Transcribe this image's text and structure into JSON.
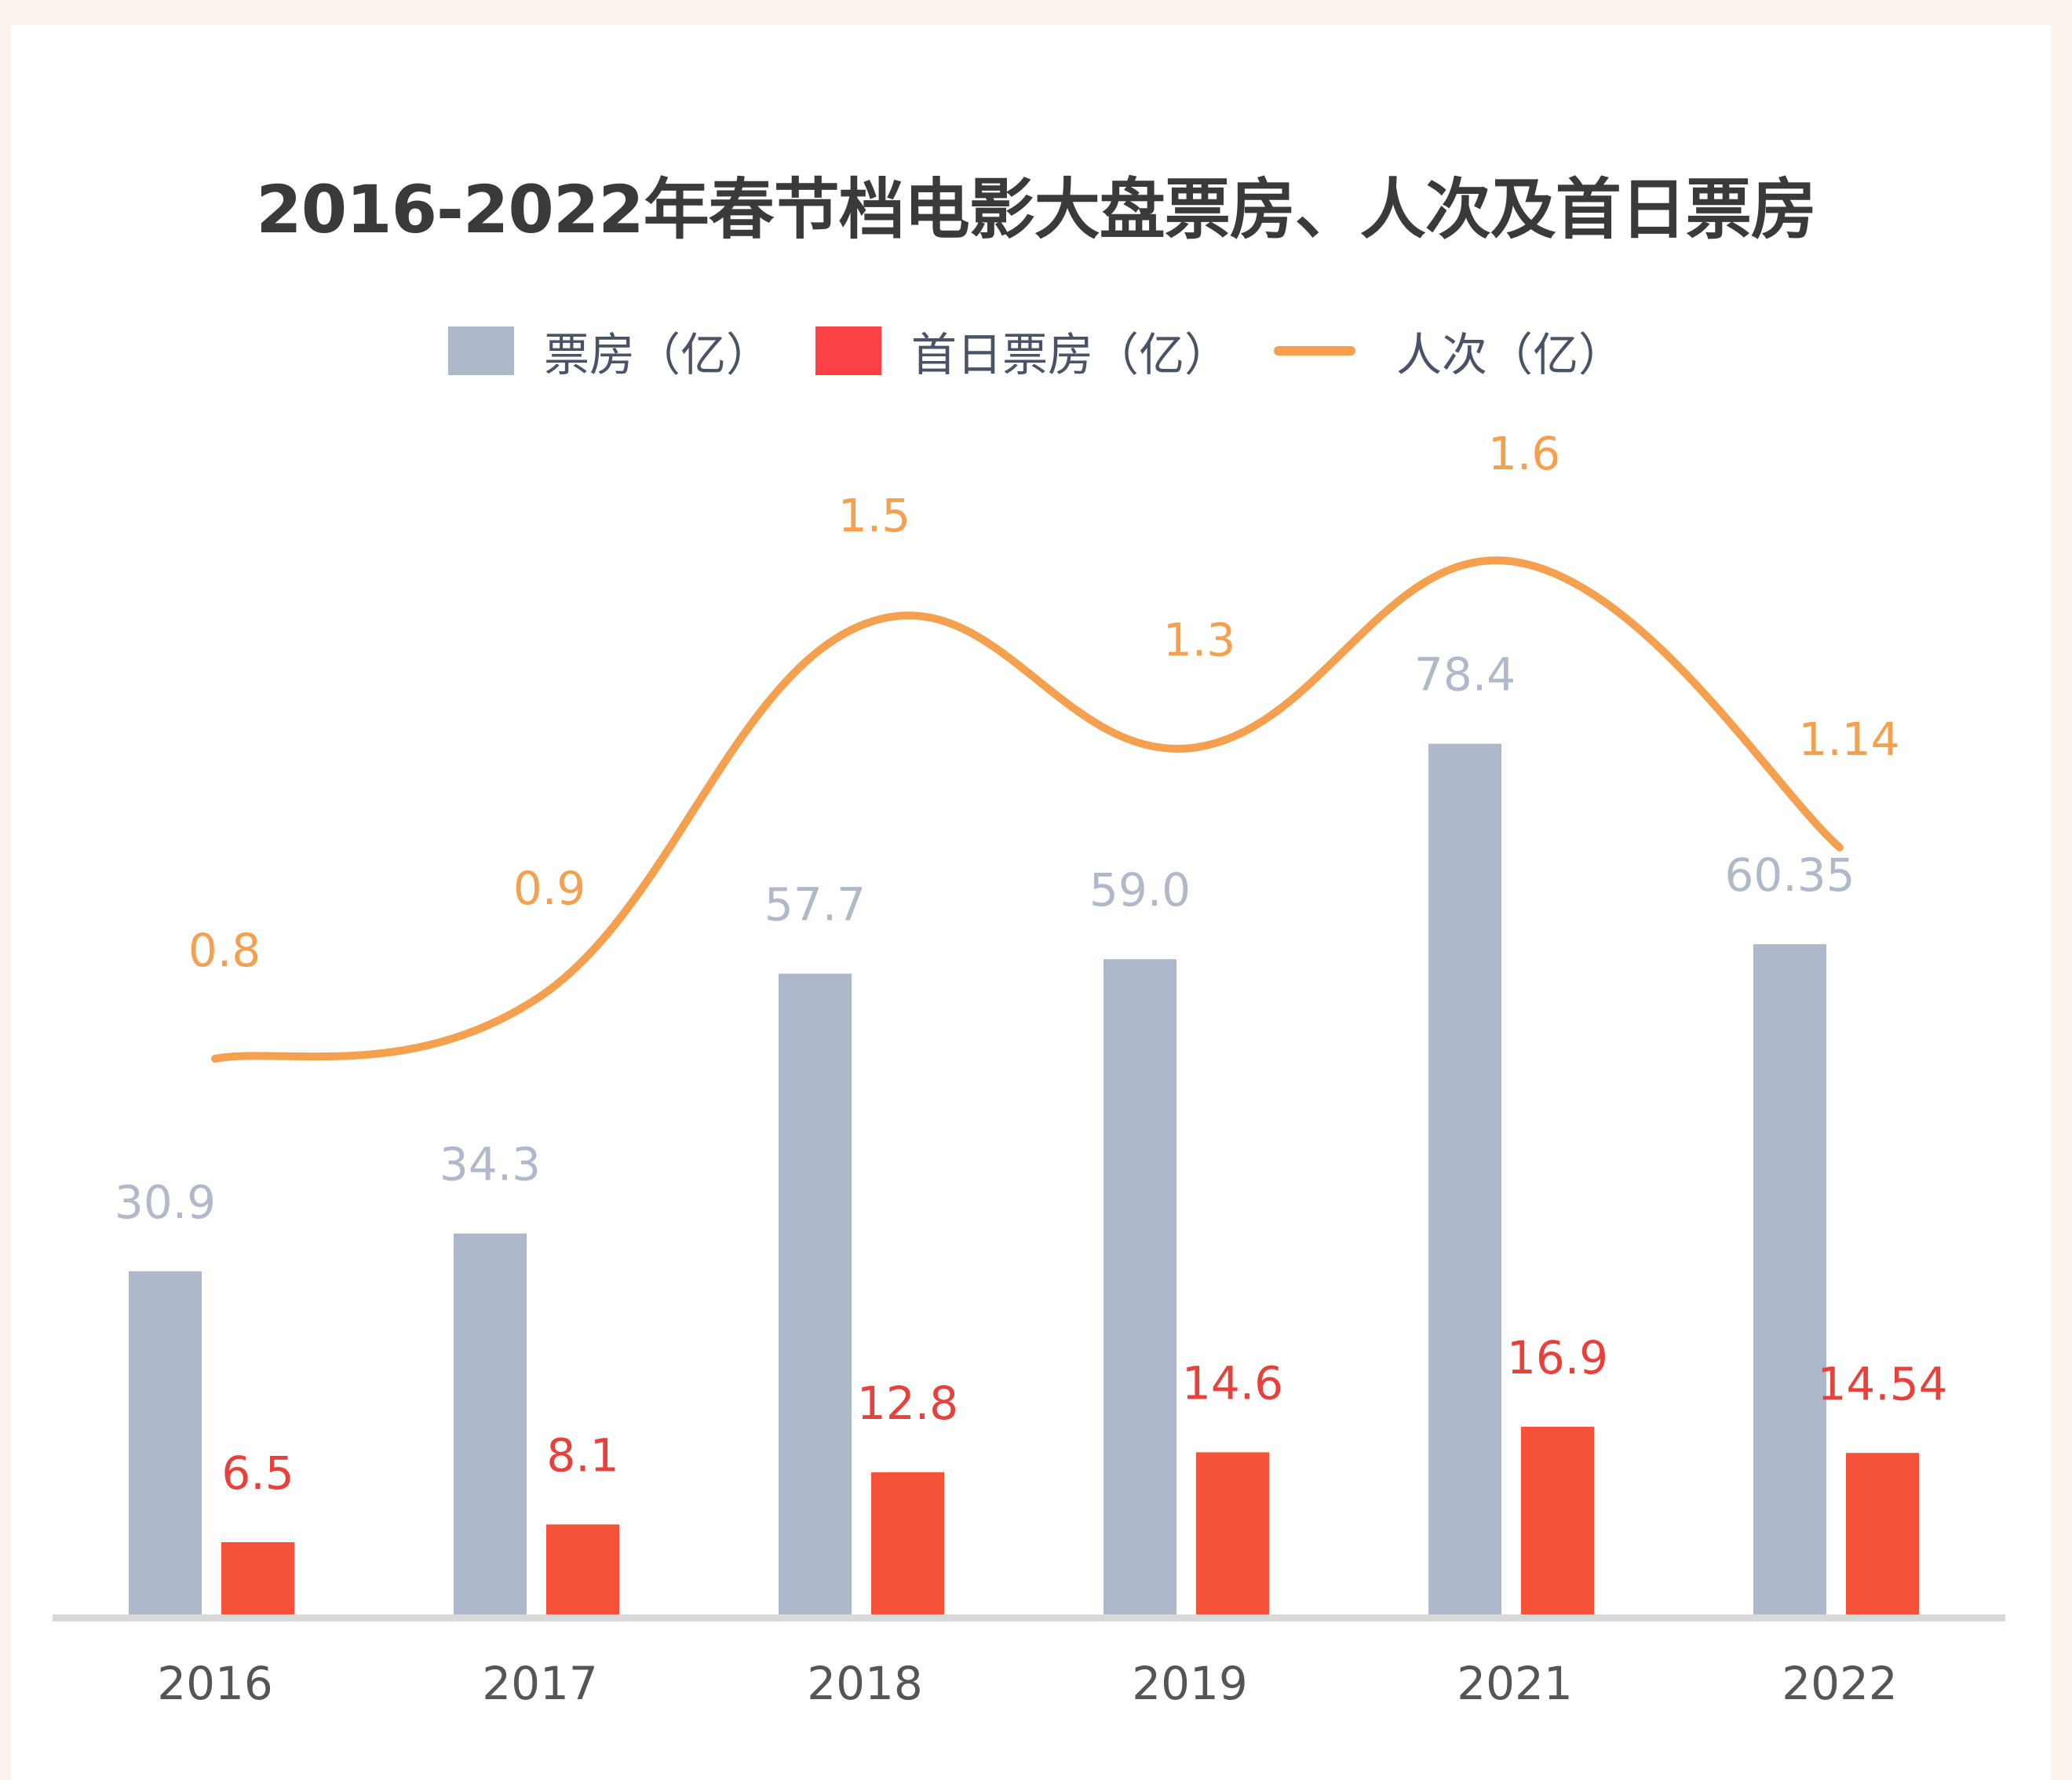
{
  "chart_data": {
    "type": "bar",
    "title": "2016-2022年春节档电影大盘票房、人次及首日票房",
    "categories": [
      "2016",
      "2017",
      "2018",
      "2019",
      "2021",
      "2022"
    ],
    "series": [
      {
        "name": "票房（亿）",
        "type": "bar",
        "color": "#adb8ca",
        "labels": [
          "30.9",
          "34.3",
          "57.7",
          "59.0",
          "78.4",
          "60.35"
        ],
        "values": [
          30.9,
          34.3,
          57.7,
          59.0,
          78.4,
          60.35
        ]
      },
      {
        "name": "首日票房（亿）",
        "type": "bar",
        "color": "#f4533a",
        "legend_color": "#fc4146",
        "labels": [
          "6.5",
          "8.1",
          "12.8",
          "14.6",
          "16.9",
          "14.54"
        ],
        "values": [
          6.5,
          8.1,
          12.8,
          14.6,
          16.9,
          14.54
        ]
      },
      {
        "name": "人次（亿）",
        "type": "line",
        "color": "#f5a04f",
        "labels": [
          "0.8",
          "0.9",
          "1.5",
          "1.3",
          "1.6",
          "1.14"
        ],
        "values": [
          0.8,
          0.9,
          1.5,
          1.3,
          1.6,
          1.14
        ]
      }
    ],
    "legend_position": "top",
    "grid": false
  }
}
